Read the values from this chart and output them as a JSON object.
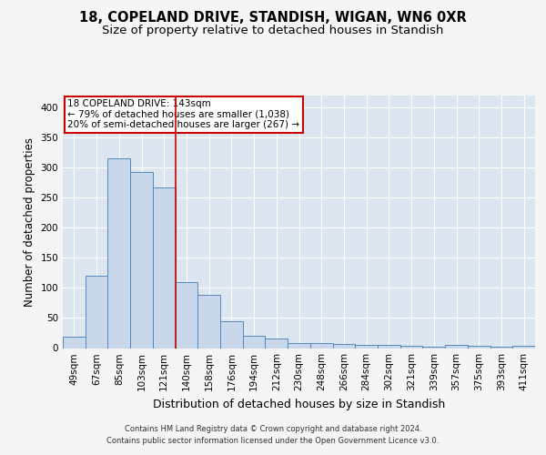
{
  "title1": "18, COPELAND DRIVE, STANDISH, WIGAN, WN6 0XR",
  "title2": "Size of property relative to detached houses in Standish",
  "xlabel": "Distribution of detached houses by size in Standish",
  "ylabel": "Number of detached properties",
  "categories": [
    "49sqm",
    "67sqm",
    "85sqm",
    "103sqm",
    "121sqm",
    "140sqm",
    "158sqm",
    "176sqm",
    "194sqm",
    "212sqm",
    "230sqm",
    "248sqm",
    "266sqm",
    "284sqm",
    "302sqm",
    "321sqm",
    "339sqm",
    "357sqm",
    "375sqm",
    "393sqm",
    "411sqm"
  ],
  "values": [
    19,
    120,
    315,
    293,
    267,
    109,
    89,
    45,
    20,
    16,
    9,
    9,
    7,
    6,
    5,
    4,
    3,
    5,
    4,
    3,
    4
  ],
  "bar_color": "#c8d8ea",
  "bar_edge_color": "#5588bb",
  "annotation_line1": "18 COPELAND DRIVE: 143sqm",
  "annotation_line2": "← 79% of detached houses are smaller (1,038)",
  "annotation_line3": "20% of semi-detached houses are larger (267) →",
  "annotation_box_color": "#ffffff",
  "annotation_box_edge": "#cc0000",
  "vline_color": "#cc0000",
  "vline_x_index": 4.5,
  "fig_background": "#f5f5f5",
  "plot_background": "#dce6f0",
  "ylim": [
    0,
    420
  ],
  "yticks": [
    0,
    50,
    100,
    150,
    200,
    250,
    300,
    350,
    400
  ],
  "grid_color": "#ffffff",
  "title_fontsize": 10.5,
  "subtitle_fontsize": 9.5,
  "tick_fontsize": 7.5,
  "ylabel_fontsize": 8.5,
  "xlabel_fontsize": 9,
  "footer_line1": "Contains HM Land Registry data © Crown copyright and database right 2024.",
  "footer_line2": "Contains public sector information licensed under the Open Government Licence v3.0."
}
